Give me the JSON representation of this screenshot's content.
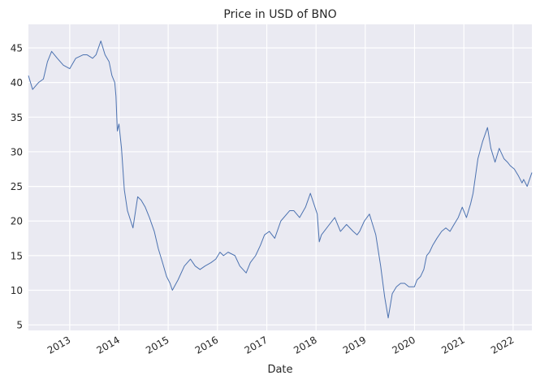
{
  "chart_data": {
    "type": "line",
    "title": "Price in USD of BNO",
    "xlabel": "Date",
    "ylabel": "",
    "grid": true,
    "legend": "none",
    "x_range": [
      "2012-03-01",
      "2022-05-20"
    ],
    "ylim": [
      4.2,
      48.4
    ],
    "y_ticks": [
      5,
      10,
      15,
      20,
      25,
      30,
      35,
      40,
      45
    ],
    "x_ticks": [
      "2013-01-01",
      "2014-01-01",
      "2015-01-01",
      "2016-01-01",
      "2017-01-01",
      "2018-01-01",
      "2019-01-01",
      "2020-01-01",
      "2021-01-01",
      "2022-01-01"
    ],
    "x_tick_labels": [
      "2013",
      "2014",
      "2015",
      "2016",
      "2017",
      "2018",
      "2019",
      "2020",
      "2021",
      "2022"
    ],
    "colors": {
      "line": "#4c72b0",
      "plot_bg": "#eaeaf2",
      "grid": "#ffffff",
      "text": "#262626"
    },
    "series": [
      {
        "x": [
          "2012-03-01",
          "2012-04-01",
          "2012-05-15",
          "2012-06-20",
          "2012-07-20",
          "2012-08-20",
          "2012-10-01",
          "2012-11-15",
          "2013-01-01",
          "2013-02-15",
          "2013-04-10",
          "2013-05-10",
          "2013-06-20",
          "2013-07-15",
          "2013-08-20",
          "2013-09-20",
          "2013-10-20",
          "2013-11-10",
          "2013-12-01",
          "2013-12-10",
          "2013-12-20",
          "2014-01-01",
          "2014-01-20",
          "2014-02-10",
          "2014-03-05",
          "2014-04-15",
          "2014-05-20",
          "2014-06-15",
          "2014-07-15",
          "2014-08-15",
          "2014-09-20",
          "2014-10-20",
          "2014-11-20",
          "2014-12-20",
          "2015-01-15",
          "2015-02-01",
          "2015-03-15",
          "2015-05-01",
          "2015-06-15",
          "2015-07-20",
          "2015-08-25",
          "2015-10-01",
          "2015-11-15",
          "2015-12-20",
          "2016-01-20",
          "2016-02-15",
          "2016-03-20",
          "2016-05-10",
          "2016-06-15",
          "2016-08-01",
          "2016-09-01",
          "2016-10-10",
          "2016-11-15",
          "2016-12-15",
          "2017-01-20",
          "2017-03-01",
          "2017-04-15",
          "2017-06-20",
          "2017-07-20",
          "2017-09-01",
          "2017-10-15",
          "2017-11-20",
          "2018-01-10",
          "2018-01-25",
          "2018-02-10",
          "2018-04-10",
          "2018-05-20",
          "2018-07-01",
          "2018-08-15",
          "2018-10-03",
          "2018-11-01",
          "2018-11-20",
          "2018-12-25",
          "2019-02-01",
          "2019-03-20",
          "2019-04-25",
          "2019-05-25",
          "2019-06-20",
          "2019-07-20",
          "2019-08-20",
          "2019-09-20",
          "2019-10-20",
          "2019-11-20",
          "2019-12-31",
          "2020-01-20",
          "2020-02-15",
          "2020-03-10",
          "2020-03-31",
          "2020-04-21",
          "2020-05-15",
          "2020-06-15",
          "2020-07-20",
          "2020-08-20",
          "2020-09-20",
          "2020-10-20",
          "2020-11-20",
          "2020-12-20",
          "2021-01-20",
          "2021-02-20",
          "2021-03-10",
          "2021-04-15",
          "2021-05-20",
          "2021-06-25",
          "2021-07-20",
          "2021-08-20",
          "2021-09-20",
          "2021-10-25",
          "2021-11-20",
          "2021-12-10",
          "2022-01-10",
          "2022-02-10",
          "2022-03-08",
          "2022-03-20",
          "2022-04-15",
          "2022-05-20"
        ],
        "values": [
          41.0,
          39.0,
          40.0,
          40.5,
          43.0,
          44.5,
          43.5,
          42.5,
          42.0,
          43.5,
          44.0,
          44.0,
          43.5,
          44.0,
          46.0,
          44.0,
          43.0,
          41.0,
          40.0,
          38.0,
          33.0,
          34.0,
          30.5,
          24.5,
          21.5,
          19.0,
          23.5,
          23.0,
          22.0,
          20.5,
          18.5,
          16.0,
          14.0,
          12.0,
          11.0,
          10.0,
          11.5,
          13.5,
          14.5,
          13.5,
          13.0,
          13.5,
          14.0,
          14.5,
          15.5,
          15.0,
          15.5,
          15.0,
          13.5,
          12.5,
          14.0,
          15.0,
          16.5,
          18.0,
          18.5,
          17.5,
          20.0,
          21.5,
          21.5,
          20.5,
          22.0,
          24.0,
          21.0,
          17.0,
          18.0,
          19.5,
          20.5,
          18.5,
          19.5,
          18.5,
          18.0,
          18.5,
          20.0,
          21.0,
          18.0,
          13.5,
          9.0,
          6.0,
          9.5,
          10.5,
          11.0,
          11.0,
          10.5,
          10.5,
          11.5,
          12.0,
          13.0,
          15.0,
          15.5,
          16.5,
          17.5,
          18.5,
          19.0,
          18.5,
          19.5,
          20.5,
          22.0,
          20.5,
          22.5,
          24.0,
          29.0,
          31.5,
          33.5,
          30.5,
          28.5,
          30.5,
          29.0,
          28.5,
          28.0,
          27.5,
          26.5,
          25.5,
          26.0,
          25.0,
          27.0
        ]
      }
    ]
  }
}
